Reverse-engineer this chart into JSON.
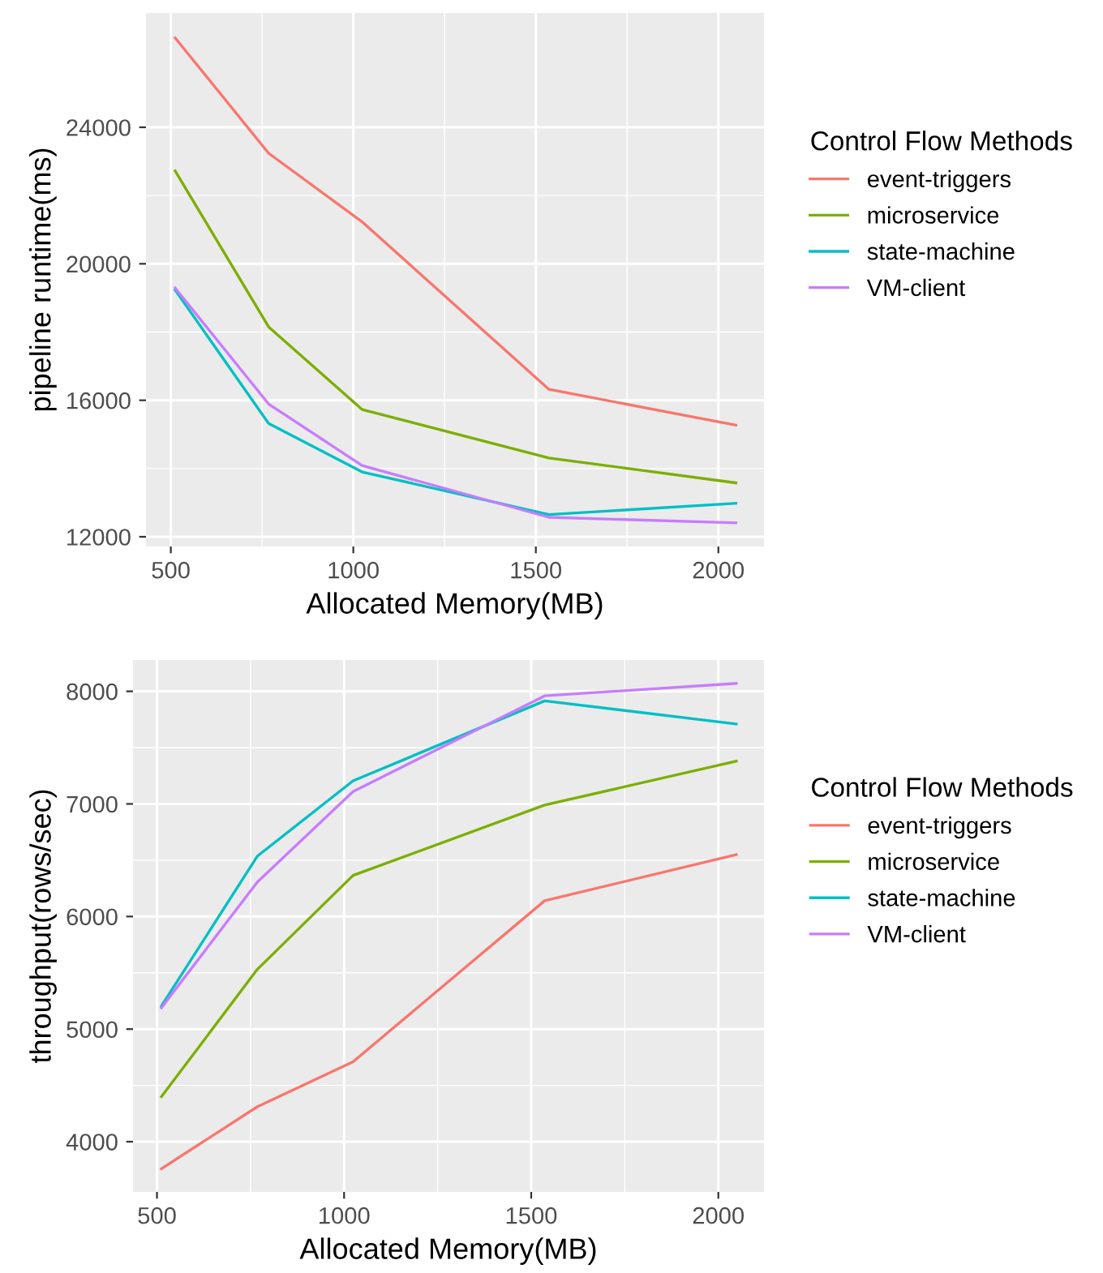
{
  "chart_data": [
    {
      "type": "line",
      "xlabel": "Allocated Memory(MB)",
      "ylabel": "pipeline runtime(ms)",
      "legend_title": "Control Flow Methods",
      "legend": "right",
      "grid": true,
      "x": [
        512,
        768,
        1024,
        1536,
        2048
      ],
      "xlim": [
        432,
        2125
      ],
      "xticks": [
        500,
        1000,
        1500,
        2000
      ],
      "ylim": [
        11715,
        27350
      ],
      "yticks": [
        12000,
        16000,
        20000,
        24000
      ],
      "series": [
        {
          "name": "event-triggers",
          "color": "#f8766d",
          "values": [
            26620,
            23240,
            21230,
            16320,
            15270
          ]
        },
        {
          "name": "microservice",
          "color": "#7cae00",
          "values": [
            22720,
            18150,
            15730,
            14310,
            13580
          ]
        },
        {
          "name": "state-machine",
          "color": "#00bfc4",
          "values": [
            19230,
            15320,
            13900,
            12650,
            12980
          ]
        },
        {
          "name": "VM-client",
          "color": "#c77cff",
          "values": [
            19290,
            15890,
            14090,
            12570,
            12410
          ]
        }
      ]
    },
    {
      "type": "line",
      "xlabel": "Allocated Memory(MB)",
      "ylabel": "throughput(rows/sec)",
      "legend_title": "Control Flow Methods",
      "legend": "right",
      "grid": true,
      "x": [
        512,
        768,
        1024,
        1536,
        2048
      ],
      "xlim": [
        436,
        2122
      ],
      "xticks": [
        500,
        1000,
        1500,
        2000
      ],
      "ylim": [
        3554,
        8278
      ],
      "yticks": [
        4000,
        5000,
        6000,
        7000,
        8000
      ],
      "series": [
        {
          "name": "event-triggers",
          "color": "#f8766d",
          "values": [
            3760,
            4310,
            4710,
            6140,
            6550
          ]
        },
        {
          "name": "microservice",
          "color": "#7cae00",
          "values": [
            4400,
            5530,
            6365,
            6990,
            7380
          ]
        },
        {
          "name": "state-machine",
          "color": "#00bfc4",
          "values": [
            5205,
            6535,
            7205,
            7915,
            7710
          ]
        },
        {
          "name": "VM-client",
          "color": "#c77cff",
          "values": [
            5190,
            6305,
            7110,
            7960,
            8070
          ]
        }
      ]
    }
  ]
}
